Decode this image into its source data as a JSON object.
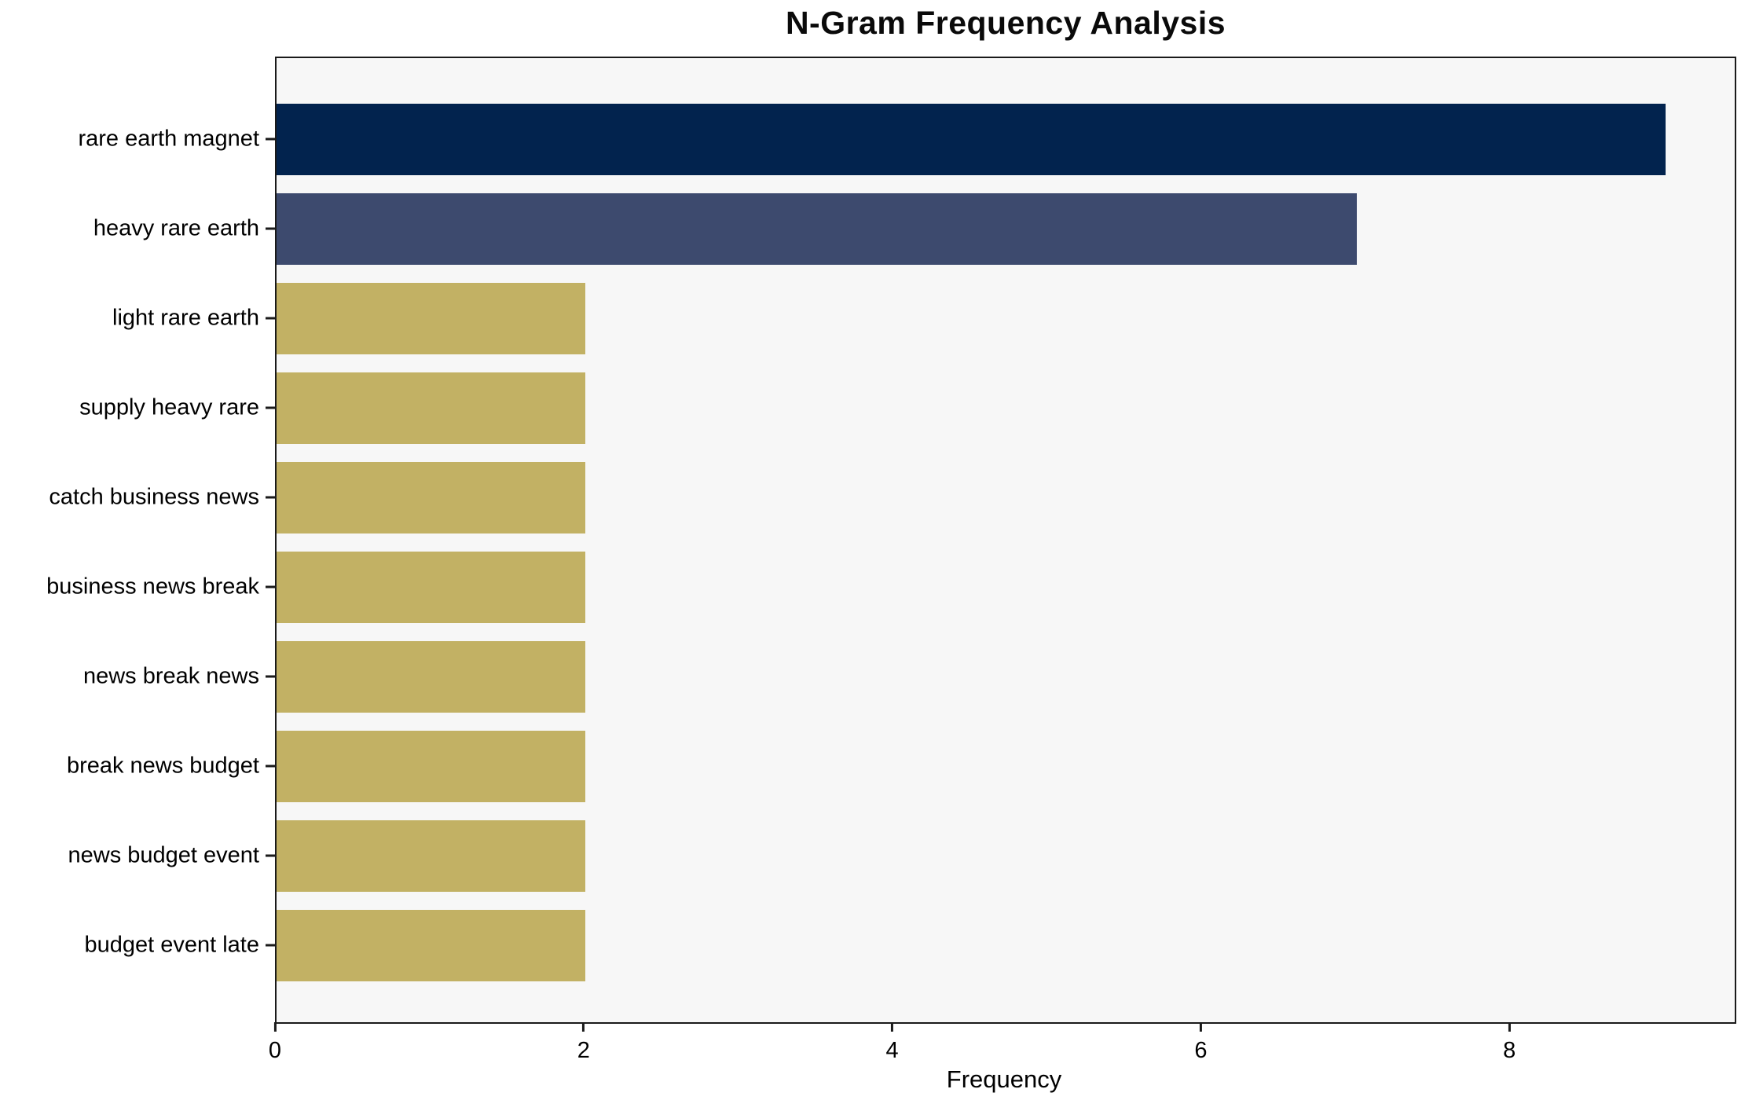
{
  "chart_data": {
    "type": "bar",
    "orientation": "horizontal",
    "title": "N-Gram Frequency Analysis",
    "xlabel": "Frequency",
    "ylabel": "",
    "categories": [
      "rare earth magnet",
      "heavy rare earth",
      "light rare earth",
      "supply heavy rare",
      "catch business news",
      "business news break",
      "news break news",
      "break news budget",
      "news budget event",
      "budget event late"
    ],
    "values": [
      9,
      7,
      2,
      2,
      2,
      2,
      2,
      2,
      2,
      2
    ],
    "bar_colors": [
      "#02234e",
      "#3d4a6e",
      "#c2b164",
      "#c2b164",
      "#c2b164",
      "#c2b164",
      "#c2b164",
      "#c2b164",
      "#c2b164",
      "#c2b164"
    ],
    "xlim": [
      0,
      9.45
    ],
    "x_ticks": [
      "0",
      "2",
      "4",
      "6",
      "8"
    ],
    "x_tick_values": [
      0,
      2,
      4,
      6,
      8
    ],
    "grid": false,
    "legend": "none",
    "plot_background": "#f7f7f7",
    "axis_color": "#1a1a1a",
    "text_color": "#000000"
  }
}
